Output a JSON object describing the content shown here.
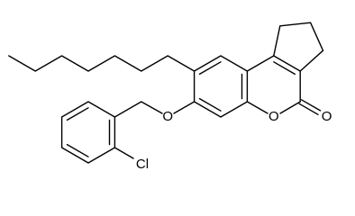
{
  "atoms": {
    "ether_oxygen": "O",
    "ring_oxygen": "O",
    "carbonyl_oxygen": "O",
    "chlorine": "Cl"
  }
}
